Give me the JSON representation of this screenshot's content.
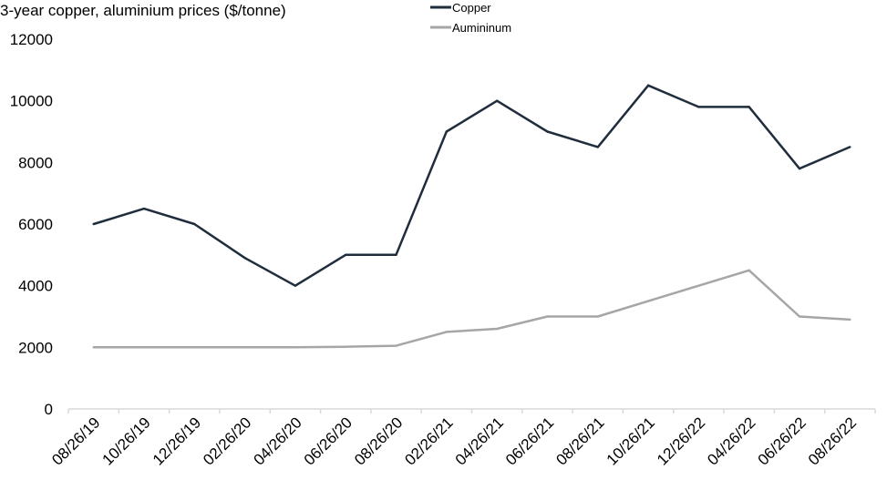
{
  "chart_data": {
    "type": "line",
    "title": "3-year copper, aluminium prices ($/tonne)",
    "categories": [
      "08/26/19",
      "10/26/19",
      "12/26/19",
      "02/26/20",
      "04/26/20",
      "06/26/20",
      "08/26/20",
      "02/26/21",
      "04/26/21",
      "06/26/21",
      "08/26/21",
      "10/26/21",
      "12/26/22",
      "04/26/22",
      "06/26/22",
      "08/26/22"
    ],
    "series": [
      {
        "name": "Copper",
        "color": "#1f2d3d",
        "values": [
          6000,
          6500,
          6000,
          4900,
          4000,
          5000,
          5000,
          9000,
          10000,
          9000,
          8500,
          10500,
          9800,
          9800,
          7800,
          8500
        ]
      },
      {
        "name": "Aumininum",
        "color": "#a6a6a6",
        "values": [
          2000,
          2000,
          2000,
          2000,
          2000,
          2020,
          2050,
          2500,
          2600,
          3000,
          3000,
          3500,
          4000,
          4500,
          3000,
          2900
        ]
      }
    ],
    "ylim": [
      0,
      12000
    ],
    "yticks": [
      0,
      2000,
      4000,
      6000,
      8000,
      10000,
      12000
    ],
    "grid": false,
    "legend": "top-center",
    "axis_color": "#d9d9d9"
  }
}
